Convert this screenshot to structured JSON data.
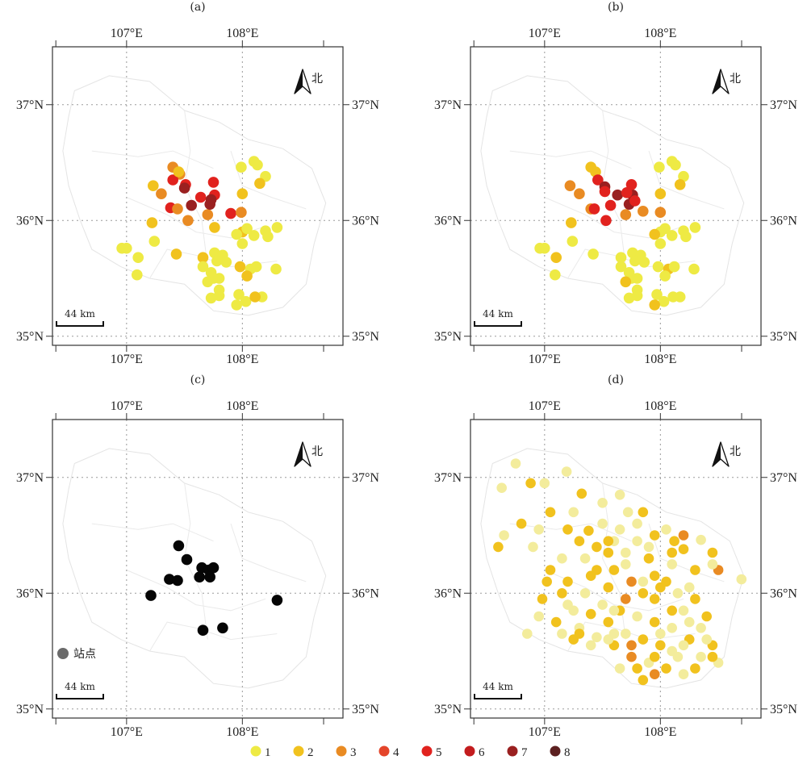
{
  "panels": [
    {
      "label": "(a)",
      "mode": "stations",
      "dots": [
        [
          107.23,
          36.3
        ],
        [
          107.3,
          36.23
        ],
        [
          107.4,
          36.46
        ],
        [
          107.46,
          36.4
        ],
        [
          107.51,
          36.31
        ],
        [
          107.4,
          36.35
        ],
        [
          107.45,
          36.42
        ],
        [
          107.5,
          36.28
        ],
        [
          107.38,
          36.11
        ],
        [
          107.44,
          36.1
        ],
        [
          107.56,
          36.13
        ],
        [
          107.64,
          36.2
        ],
        [
          107.7,
          36.05
        ],
        [
          107.72,
          36.14
        ],
        [
          107.76,
          36.22
        ],
        [
          107.73,
          36.18
        ],
        [
          107.75,
          36.33
        ],
        [
          107.76,
          35.94
        ],
        [
          107.22,
          35.98
        ],
        [
          107.24,
          35.82
        ],
        [
          107.0,
          35.76
        ],
        [
          106.96,
          35.76
        ],
        [
          107.1,
          35.68
        ],
        [
          107.09,
          35.53
        ],
        [
          107.43,
          35.71
        ],
        [
          107.53,
          36.0
        ],
        [
          107.9,
          36.06
        ],
        [
          107.99,
          36.07
        ],
        [
          108.0,
          36.23
        ],
        [
          107.99,
          36.46
        ],
        [
          108.1,
          36.51
        ],
        [
          108.13,
          36.48
        ],
        [
          108.2,
          36.38
        ],
        [
          108.15,
          36.32
        ],
        [
          108.1,
          35.87
        ],
        [
          108.0,
          35.9
        ],
        [
          108.04,
          35.93
        ],
        [
          108.2,
          35.91
        ],
        [
          108.22,
          35.86
        ],
        [
          108.3,
          35.94
        ],
        [
          108.0,
          35.8
        ],
        [
          107.95,
          35.88
        ],
        [
          107.76,
          35.72
        ],
        [
          107.66,
          35.68
        ],
        [
          107.83,
          35.7
        ],
        [
          107.86,
          35.64
        ],
        [
          107.78,
          35.65
        ],
        [
          107.73,
          35.55
        ],
        [
          107.75,
          35.5
        ],
        [
          107.7,
          35.47
        ],
        [
          107.8,
          35.5
        ],
        [
          107.98,
          35.6
        ],
        [
          108.07,
          35.58
        ],
        [
          108.12,
          35.6
        ],
        [
          108.04,
          35.52
        ],
        [
          107.8,
          35.4
        ],
        [
          107.73,
          35.33
        ],
        [
          107.8,
          35.35
        ],
        [
          107.97,
          35.36
        ],
        [
          108.03,
          35.3
        ],
        [
          107.95,
          35.27
        ],
        [
          108.17,
          35.34
        ],
        [
          108.11,
          35.34
        ],
        [
          108.29,
          35.58
        ],
        [
          107.66,
          35.6
        ]
      ]
    },
    {
      "label": "(b)",
      "mode": "stations",
      "dots": [
        [
          107.4,
          36.46
        ],
        [
          107.44,
          36.42
        ],
        [
          107.46,
          36.35
        ],
        [
          107.3,
          36.23
        ],
        [
          107.52,
          36.29
        ],
        [
          107.22,
          36.3
        ],
        [
          107.4,
          36.1
        ],
        [
          107.43,
          36.1
        ],
        [
          107.52,
          36.25
        ],
        [
          107.57,
          36.13
        ],
        [
          107.63,
          36.22
        ],
        [
          107.7,
          36.05
        ],
        [
          107.73,
          36.14
        ],
        [
          107.76,
          36.22
        ],
        [
          107.78,
          36.17
        ],
        [
          107.75,
          36.31
        ],
        [
          107.71,
          36.24
        ],
        [
          107.23,
          35.98
        ],
        [
          107.24,
          35.82
        ],
        [
          107.0,
          35.76
        ],
        [
          106.96,
          35.76
        ],
        [
          107.1,
          35.68
        ],
        [
          107.09,
          35.53
        ],
        [
          107.42,
          35.71
        ],
        [
          107.53,
          36.0
        ],
        [
          107.85,
          36.08
        ],
        [
          108.0,
          36.07
        ],
        [
          108.0,
          36.23
        ],
        [
          107.99,
          36.46
        ],
        [
          108.1,
          36.51
        ],
        [
          108.13,
          36.48
        ],
        [
          108.2,
          36.38
        ],
        [
          108.17,
          36.31
        ],
        [
          108.1,
          35.87
        ],
        [
          108.0,
          35.9
        ],
        [
          108.04,
          35.93
        ],
        [
          108.2,
          35.91
        ],
        [
          108.22,
          35.86
        ],
        [
          108.3,
          35.94
        ],
        [
          108.0,
          35.8
        ],
        [
          107.95,
          35.88
        ],
        [
          107.76,
          35.72
        ],
        [
          107.66,
          35.68
        ],
        [
          107.83,
          35.7
        ],
        [
          107.86,
          35.64
        ],
        [
          107.78,
          35.65
        ],
        [
          107.73,
          35.55
        ],
        [
          107.75,
          35.5
        ],
        [
          107.7,
          35.47
        ],
        [
          107.8,
          35.5
        ],
        [
          107.98,
          35.6
        ],
        [
          108.07,
          35.58
        ],
        [
          108.12,
          35.6
        ],
        [
          108.04,
          35.52
        ],
        [
          107.8,
          35.4
        ],
        [
          107.73,
          35.33
        ],
        [
          107.8,
          35.35
        ],
        [
          107.97,
          35.36
        ],
        [
          108.03,
          35.3
        ],
        [
          107.95,
          35.27
        ],
        [
          108.17,
          35.34
        ],
        [
          108.11,
          35.34
        ],
        [
          108.29,
          35.58
        ],
        [
          107.66,
          35.6
        ]
      ]
    },
    {
      "label": "(c)",
      "mode": "black",
      "dots": [
        [
          107.45,
          36.41
        ],
        [
          107.52,
          36.29
        ],
        [
          107.37,
          36.12
        ],
        [
          107.44,
          36.11
        ],
        [
          107.63,
          36.14
        ],
        [
          107.65,
          36.22
        ],
        [
          107.71,
          36.2
        ],
        [
          107.75,
          36.22
        ],
        [
          107.72,
          36.14
        ],
        [
          107.21,
          35.98
        ],
        [
          108.3,
          35.94
        ],
        [
          107.66,
          35.68
        ],
        [
          107.83,
          35.7
        ]
      ]
    },
    {
      "label": "(d)",
      "mode": "dense",
      "dots": [
        [
          106.75,
          37.12
        ],
        [
          106.88,
          36.95
        ],
        [
          106.63,
          36.91
        ],
        [
          107.19,
          37.05
        ],
        [
          107.32,
          36.86
        ],
        [
          107.65,
          36.85
        ],
        [
          107.0,
          36.95
        ],
        [
          107.38,
          36.54
        ],
        [
          107.6,
          36.45
        ],
        [
          107.45,
          36.4
        ],
        [
          107.72,
          36.7
        ],
        [
          107.8,
          36.6
        ],
        [
          107.95,
          36.5
        ],
        [
          108.05,
          36.55
        ],
        [
          108.12,
          36.45
        ],
        [
          108.2,
          36.38
        ],
        [
          108.35,
          36.46
        ],
        [
          108.45,
          36.35
        ],
        [
          108.5,
          36.2
        ],
        [
          108.7,
          36.12
        ],
        [
          106.8,
          36.6
        ],
        [
          106.9,
          36.4
        ],
        [
          107.05,
          36.2
        ],
        [
          107.2,
          36.1
        ],
        [
          107.35,
          36.0
        ],
        [
          107.55,
          36.05
        ],
        [
          107.7,
          35.95
        ],
        [
          107.85,
          36.1
        ],
        [
          108.0,
          36.05
        ],
        [
          108.15,
          36.0
        ],
        [
          108.3,
          35.95
        ],
        [
          108.4,
          35.8
        ],
        [
          108.25,
          35.75
        ],
        [
          108.1,
          35.7
        ],
        [
          107.95,
          35.75
        ],
        [
          107.8,
          35.8
        ],
        [
          107.65,
          35.85
        ],
        [
          107.5,
          35.9
        ],
        [
          107.3,
          35.7
        ],
        [
          107.1,
          35.75
        ],
        [
          106.95,
          35.8
        ],
        [
          106.85,
          35.65
        ],
        [
          107.25,
          35.6
        ],
        [
          107.45,
          35.62
        ],
        [
          107.6,
          35.55
        ],
        [
          107.75,
          35.45
        ],
        [
          107.9,
          35.4
        ],
        [
          108.05,
          35.35
        ],
        [
          108.2,
          35.3
        ],
        [
          108.35,
          35.45
        ],
        [
          108.45,
          35.55
        ],
        [
          108.5,
          35.4
        ],
        [
          107.85,
          35.25
        ],
        [
          107.95,
          35.3
        ],
        [
          108.1,
          35.5
        ],
        [
          108.25,
          35.6
        ],
        [
          107.7,
          35.65
        ],
        [
          107.55,
          35.75
        ],
        [
          107.4,
          35.82
        ],
        [
          107.2,
          35.9
        ],
        [
          106.98,
          35.95
        ],
        [
          107.02,
          36.1
        ],
        [
          107.15,
          36.3
        ],
        [
          107.3,
          36.45
        ],
        [
          107.5,
          36.6
        ],
        [
          107.7,
          36.35
        ],
        [
          107.9,
          36.3
        ],
        [
          108.1,
          36.25
        ],
        [
          108.3,
          36.2
        ],
        [
          107.6,
          36.2
        ],
        [
          107.8,
          36.45
        ],
        [
          107.95,
          36.15
        ],
        [
          107.75,
          36.1
        ],
        [
          107.6,
          35.65
        ],
        [
          107.95,
          35.95
        ],
        [
          108.2,
          35.85
        ],
        [
          107.45,
          36.2
        ],
        [
          107.2,
          36.55
        ],
        [
          107.35,
          36.3
        ],
        [
          107.85,
          35.6
        ],
        [
          108.0,
          35.55
        ],
        [
          108.4,
          35.6
        ],
        [
          108.3,
          35.35
        ],
        [
          108.15,
          35.45
        ],
        [
          107.65,
          35.35
        ],
        [
          107.8,
          35.35
        ],
        [
          108.0,
          35.65
        ],
        [
          107.4,
          35.55
        ],
        [
          107.3,
          35.65
        ],
        [
          107.15,
          35.65
        ],
        [
          106.6,
          36.4
        ],
        [
          106.65,
          36.5
        ],
        [
          106.95,
          36.55
        ],
        [
          107.05,
          36.7
        ],
        [
          107.25,
          36.7
        ],
        [
          107.5,
          36.78
        ],
        [
          107.85,
          36.7
        ],
        [
          107.9,
          36.4
        ],
        [
          108.1,
          36.35
        ],
        [
          108.2,
          36.5
        ],
        [
          108.45,
          36.25
        ],
        [
          107.55,
          36.35
        ],
        [
          107.65,
          36.55
        ],
        [
          108.05,
          36.1
        ],
        [
          107.85,
          36.0
        ],
        [
          107.7,
          36.25
        ],
        [
          107.55,
          36.45
        ],
        [
          107.4,
          36.15
        ],
        [
          107.25,
          35.85
        ],
        [
          107.15,
          36.0
        ],
        [
          107.55,
          35.6
        ],
        [
          107.6,
          35.85
        ],
        [
          108.1,
          35.85
        ],
        [
          108.25,
          36.05
        ],
        [
          108.35,
          35.7
        ],
        [
          108.45,
          35.45
        ],
        [
          108.2,
          35.55
        ],
        [
          107.95,
          35.45
        ],
        [
          107.75,
          35.55
        ]
      ]
    }
  ],
  "legend": [
    {
      "label": "1",
      "color": "#eeea44"
    },
    {
      "label": "2",
      "color": "#f1c21e"
    },
    {
      "label": "3",
      "color": "#e98b23"
    },
    {
      "label": "4",
      "color": "#e4452a"
    },
    {
      "label": "5",
      "color": "#e1221e"
    },
    {
      "label": "6",
      "color": "#c31c1e"
    },
    {
      "label": "7",
      "color": "#9a2020"
    },
    {
      "label": "8",
      "color": "#5c2020"
    }
  ],
  "station_label": "站点",
  "north_label": "北",
  "scale_label": "44 km",
  "lon_ticks": [
    "107°E",
    "108°E"
  ],
  "lat_ticks": [
    "37°N",
    "36°N",
    "35°N"
  ]
}
